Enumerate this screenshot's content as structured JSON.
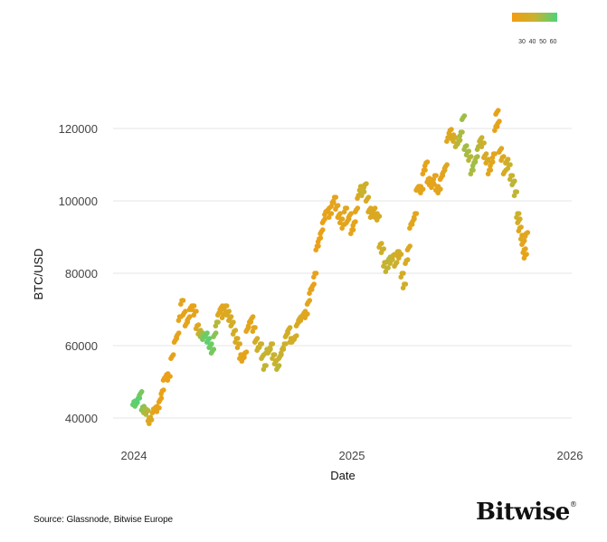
{
  "footer": {
    "source": "Source: Glassnode, Bitwise Europe",
    "logo": "Bitwise",
    "logo_mark": "®"
  },
  "colors": {
    "low": "#f39c12",
    "mid": "#c8b22e",
    "high": "#4cd47a",
    "grid": "#e6e6e6"
  },
  "chart_data": {
    "type": "scatter",
    "title": "",
    "xlabel": "Date",
    "ylabel": "BTC/USD",
    "xlim": [
      2023.9,
      2026.02
    ],
    "ylim": [
      37000,
      128000
    ],
    "x_ticks": [
      {
        "value": 2024,
        "label": "2024"
      },
      {
        "value": 2025,
        "label": "2025"
      },
      {
        "value": 2026,
        "label": "2026"
      }
    ],
    "y_ticks": [
      {
        "value": 40000,
        "label": "40000"
      },
      {
        "value": 60000,
        "label": "60000"
      },
      {
        "value": 80000,
        "label": "80000"
      },
      {
        "value": 100000,
        "label": "100000"
      },
      {
        "value": 120000,
        "label": "120000"
      }
    ],
    "grid": "horizontal",
    "colorbar": {
      "position": "top-right",
      "ticks": [
        "30",
        "40",
        "50",
        "60"
      ],
      "range": [
        25,
        65
      ],
      "colors": [
        "#f39c12",
        "#c8b22e",
        "#4cd47a"
      ]
    },
    "series_fields": [
      "date_year",
      "price_usd",
      "color_value"
    ],
    "points": [
      [
        2024.0,
        44500,
        62
      ],
      [
        2024.01,
        43800,
        60
      ],
      [
        2024.02,
        45500,
        63
      ],
      [
        2024.03,
        46800,
        58
      ],
      [
        2024.04,
        43000,
        55
      ],
      [
        2024.05,
        42500,
        50
      ],
      [
        2024.06,
        41800,
        48
      ],
      [
        2024.07,
        40000,
        38
      ],
      [
        2024.075,
        39500,
        35
      ],
      [
        2024.09,
        42500,
        33
      ],
      [
        2024.1,
        43000,
        32
      ],
      [
        2024.11,
        42800,
        31
      ],
      [
        2024.12,
        45000,
        30
      ],
      [
        2024.13,
        47500,
        30
      ],
      [
        2024.14,
        51000,
        29
      ],
      [
        2024.15,
        52000,
        29
      ],
      [
        2024.16,
        51500,
        29
      ],
      [
        2024.175,
        57000,
        30
      ],
      [
        2024.19,
        61500,
        30
      ],
      [
        2024.2,
        63000,
        31
      ],
      [
        2024.21,
        68000,
        32
      ],
      [
        2024.22,
        72500,
        32
      ],
      [
        2024.23,
        69000,
        31
      ],
      [
        2024.24,
        66000,
        33
      ],
      [
        2024.25,
        67500,
        31
      ],
      [
        2024.26,
        70500,
        31
      ],
      [
        2024.27,
        71000,
        30
      ],
      [
        2024.28,
        69500,
        32
      ],
      [
        2024.29,
        65500,
        34
      ],
      [
        2024.3,
        64000,
        45
      ],
      [
        2024.31,
        63500,
        52
      ],
      [
        2024.32,
        62500,
        58
      ],
      [
        2024.33,
        63000,
        60
      ],
      [
        2024.34,
        61500,
        62
      ],
      [
        2024.35,
        60000,
        60
      ],
      [
        2024.36,
        58500,
        58
      ],
      [
        2024.37,
        63000,
        55
      ],
      [
        2024.38,
        66500,
        48
      ],
      [
        2024.39,
        69000,
        36
      ],
      [
        2024.4,
        70500,
        33
      ],
      [
        2024.41,
        68500,
        34
      ],
      [
        2024.42,
        71000,
        35
      ],
      [
        2024.43,
        69000,
        37
      ],
      [
        2024.44,
        67500,
        38
      ],
      [
        2024.45,
        66000,
        40
      ],
      [
        2024.46,
        64000,
        40
      ],
      [
        2024.47,
        62000,
        38
      ],
      [
        2024.48,
        60500,
        36
      ],
      [
        2024.49,
        57500,
        33
      ],
      [
        2024.5,
        56500,
        31
      ],
      [
        2024.51,
        58000,
        31
      ],
      [
        2024.52,
        64500,
        32
      ],
      [
        2024.53,
        66500,
        32
      ],
      [
        2024.54,
        67500,
        33
      ],
      [
        2024.55,
        65000,
        35
      ],
      [
        2024.56,
        61500,
        40
      ],
      [
        2024.57,
        59500,
        42
      ],
      [
        2024.58,
        60500,
        44
      ],
      [
        2024.59,
        57000,
        45
      ],
      [
        2024.6,
        54500,
        46
      ],
      [
        2024.61,
        59000,
        46
      ],
      [
        2024.62,
        58500,
        45
      ],
      [
        2024.63,
        60500,
        44
      ],
      [
        2024.64,
        57500,
        44
      ],
      [
        2024.65,
        55500,
        45
      ],
      [
        2024.66,
        54000,
        47
      ],
      [
        2024.67,
        57000,
        45
      ],
      [
        2024.68,
        59000,
        44
      ],
      [
        2024.69,
        60500,
        43
      ],
      [
        2024.7,
        63000,
        41
      ],
      [
        2024.71,
        64500,
        40
      ],
      [
        2024.72,
        62000,
        40
      ],
      [
        2024.73,
        61500,
        41
      ],
      [
        2024.74,
        62500,
        40
      ],
      [
        2024.75,
        66000,
        38
      ],
      [
        2024.76,
        67500,
        37
      ],
      [
        2024.77,
        68000,
        36
      ],
      [
        2024.78,
        69000,
        35
      ],
      [
        2024.79,
        68500,
        34
      ],
      [
        2024.8,
        72000,
        33
      ],
      [
        2024.81,
        75500,
        31
      ],
      [
        2024.82,
        76500,
        30
      ],
      [
        2024.83,
        80000,
        30
      ],
      [
        2024.84,
        87500,
        29
      ],
      [
        2024.85,
        89500,
        29
      ],
      [
        2024.86,
        91500,
        30
      ],
      [
        2024.87,
        94500,
        30
      ],
      [
        2024.88,
        97000,
        30
      ],
      [
        2024.89,
        97500,
        31
      ],
      [
        2024.9,
        96500,
        31
      ],
      [
        2024.91,
        99500,
        31
      ],
      [
        2024.92,
        101000,
        32
      ],
      [
        2024.93,
        98500,
        32
      ],
      [
        2024.94,
        96000,
        32
      ],
      [
        2024.95,
        95000,
        33
      ],
      [
        2024.96,
        93500,
        33
      ],
      [
        2024.97,
        98000,
        34
      ],
      [
        2024.98,
        94500,
        33
      ],
      [
        2024.99,
        96000,
        33
      ],
      [
        2025.0,
        92000,
        32
      ],
      [
        2025.01,
        94000,
        32
      ],
      [
        2025.02,
        97500,
        33
      ],
      [
        2025.03,
        101500,
        35
      ],
      [
        2025.04,
        104000,
        42
      ],
      [
        2025.05,
        102500,
        45
      ],
      [
        2025.06,
        104500,
        42
      ],
      [
        2025.07,
        100500,
        38
      ],
      [
        2025.08,
        97500,
        36
      ],
      [
        2025.09,
        96500,
        36
      ],
      [
        2025.1,
        97500,
        36
      ],
      [
        2025.11,
        96000,
        36
      ],
      [
        2025.12,
        95500,
        38
      ],
      [
        2025.13,
        88000,
        40
      ],
      [
        2025.14,
        86500,
        42
      ],
      [
        2025.15,
        83000,
        44
      ],
      [
        2025.16,
        81500,
        46
      ],
      [
        2025.17,
        84000,
        48
      ],
      [
        2025.18,
        83500,
        45
      ],
      [
        2025.19,
        85000,
        43
      ],
      [
        2025.2,
        82500,
        42
      ],
      [
        2025.21,
        86000,
        40
      ],
      [
        2025.22,
        85000,
        39
      ],
      [
        2025.23,
        80000,
        40
      ],
      [
        2025.24,
        77000,
        41
      ],
      [
        2025.25,
        83500,
        38
      ],
      [
        2025.26,
        87000,
        36
      ],
      [
        2025.27,
        93500,
        34
      ],
      [
        2025.28,
        94500,
        33
      ],
      [
        2025.29,
        96500,
        33
      ],
      [
        2025.3,
        103500,
        33
      ],
      [
        2025.31,
        104000,
        32
      ],
      [
        2025.32,
        103000,
        31
      ],
      [
        2025.33,
        108500,
        31
      ],
      [
        2025.34,
        110500,
        31
      ],
      [
        2025.35,
        106000,
        32
      ],
      [
        2025.36,
        105000,
        32
      ],
      [
        2025.37,
        104500,
        32
      ],
      [
        2025.38,
        107000,
        32
      ],
      [
        2025.39,
        104000,
        33
      ],
      [
        2025.4,
        103000,
        33
      ],
      [
        2025.41,
        106500,
        32
      ],
      [
        2025.42,
        108000,
        33
      ],
      [
        2025.43,
        109500,
        34
      ],
      [
        2025.44,
        117500,
        35
      ],
      [
        2025.45,
        119500,
        35
      ],
      [
        2025.46,
        118000,
        36
      ],
      [
        2025.47,
        117500,
        40
      ],
      [
        2025.48,
        115500,
        45
      ],
      [
        2025.49,
        116500,
        48
      ],
      [
        2025.5,
        119000,
        50
      ],
      [
        2025.51,
        123000,
        52
      ],
      [
        2025.52,
        115000,
        51
      ],
      [
        2025.53,
        113500,
        50
      ],
      [
        2025.54,
        112000,
        48
      ],
      [
        2025.55,
        108500,
        50
      ],
      [
        2025.56,
        110500,
        52
      ],
      [
        2025.57,
        112000,
        50
      ],
      [
        2025.58,
        115000,
        48
      ],
      [
        2025.59,
        117000,
        45
      ],
      [
        2025.6,
        116000,
        43
      ],
      [
        2025.61,
        112500,
        38
      ],
      [
        2025.62,
        111000,
        36
      ],
      [
        2025.63,
        108500,
        34
      ],
      [
        2025.64,
        110500,
        33
      ],
      [
        2025.65,
        113000,
        32
      ],
      [
        2025.66,
        120500,
        31
      ],
      [
        2025.665,
        124500,
        31
      ],
      [
        2025.67,
        121500,
        32
      ],
      [
        2025.68,
        114000,
        34
      ],
      [
        2025.69,
        112000,
        36
      ],
      [
        2025.7,
        108000,
        38
      ],
      [
        2025.71,
        111000,
        40
      ],
      [
        2025.72,
        110000,
        44
      ],
      [
        2025.73,
        107000,
        45
      ],
      [
        2025.74,
        105000,
        47
      ],
      [
        2025.75,
        102500,
        46
      ],
      [
        2025.76,
        96500,
        43
      ],
      [
        2025.765,
        94500,
        40
      ],
      [
        2025.77,
        92500,
        36
      ],
      [
        2025.78,
        90500,
        34
      ],
      [
        2025.785,
        88500,
        33
      ],
      [
        2025.79,
        86500,
        32
      ],
      [
        2025.795,
        85000,
        31
      ],
      [
        2025.8,
        91000,
        33
      ]
    ]
  }
}
